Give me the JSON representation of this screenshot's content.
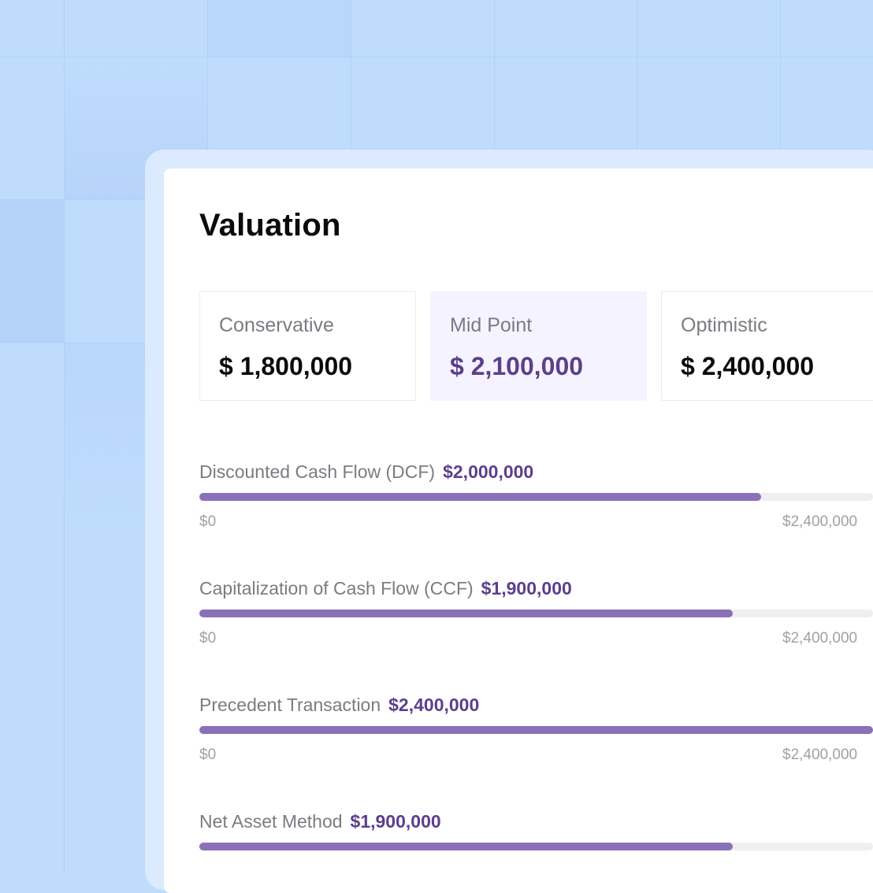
{
  "card": {
    "title": "Valuation"
  },
  "summary": [
    {
      "label": "Conservative",
      "value": "$ 1,800,000"
    },
    {
      "label": "Mid Point",
      "value": "$ 2,100,000"
    },
    {
      "label": "Optimistic",
      "value": "$ 2,400,000"
    }
  ],
  "methods": [
    {
      "name": "Discounted Cash Flow (DCF)",
      "value": "$2,000,000",
      "amount": 2000000,
      "min": "$0",
      "max": "$2,400,000"
    },
    {
      "name": "Capitalization of Cash Flow (CCF)",
      "value": "$1,900,000",
      "amount": 1900000,
      "min": "$0",
      "max": "$2,400,000"
    },
    {
      "name": "Precedent Transaction",
      "value": "$2,400,000",
      "amount": 2400000,
      "min": "$0",
      "max": "$2,400,000"
    },
    {
      "name": "Net Asset Method",
      "value": "$1,900,000",
      "amount": 1900000
    }
  ],
  "scale_max": 2400000,
  "colors": {
    "accent": "#5b3f8d",
    "bar": "#8a70b8",
    "background": "#bfdcfd",
    "frame": "#dbeafe",
    "mid_box": "#f5f3ff"
  }
}
